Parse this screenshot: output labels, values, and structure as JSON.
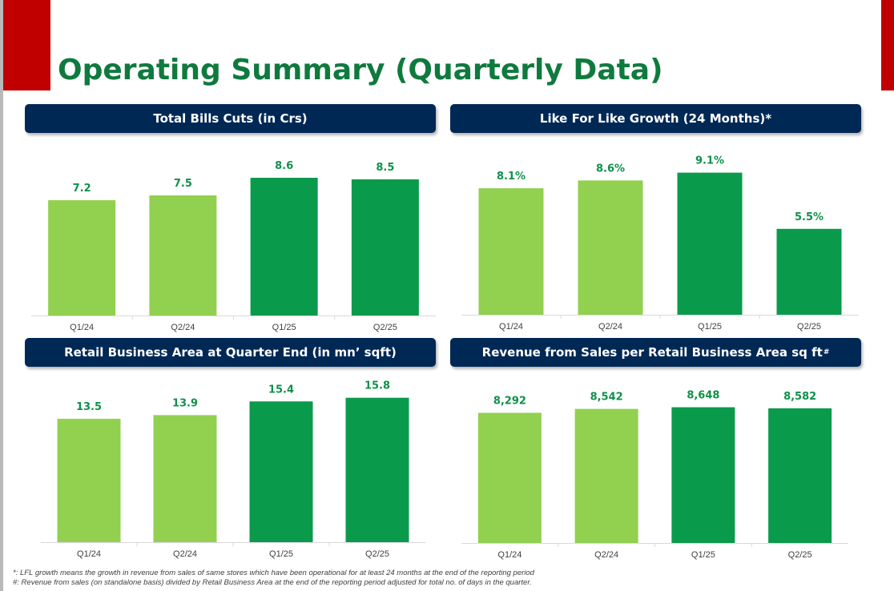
{
  "page": {
    "title": "Operating Summary (Quarterly Data)"
  },
  "colors": {
    "light_green": "#92d050",
    "dark_green": "#0a9a4c",
    "label_green": "#10904a",
    "header_navy": "#002855",
    "accent_red": "#c00000"
  },
  "chart_data": [
    {
      "type": "bar",
      "title": "Total Bills Cuts (in Crs)",
      "categories": [
        "Q1/24",
        "Q2/24",
        "Q1/25",
        "Q2/25"
      ],
      "values": [
        7.2,
        7.5,
        8.6,
        8.5
      ],
      "data_labels": [
        "7.2",
        "7.5",
        "8.6",
        "8.5"
      ],
      "bar_colors": [
        "#92d050",
        "#92d050",
        "#0a9a4c",
        "#0a9a4c"
      ],
      "ylim": [
        0,
        9.6
      ]
    },
    {
      "type": "bar",
      "title": "Like For Like Growth (24 Months)*",
      "categories": [
        "Q1/24",
        "Q2/24",
        "Q1/25",
        "Q2/25"
      ],
      "values": [
        8.1,
        8.6,
        9.1,
        5.5
      ],
      "data_labels": [
        "8.1%",
        "8.6%",
        "9.1%",
        "5.5%"
      ],
      "bar_colors": [
        "#92d050",
        "#92d050",
        "#0a9a4c",
        "#0a9a4c"
      ],
      "ylim": [
        0,
        9.9
      ]
    },
    {
      "type": "bar",
      "title": "Retail Business Area at Quarter End (in mn’ sqft)",
      "categories": [
        "Q1/24",
        "Q2/24",
        "Q1/25",
        "Q2/25"
      ],
      "values": [
        13.5,
        13.9,
        15.4,
        15.8
      ],
      "data_labels": [
        "13.5",
        "13.9",
        "15.4",
        "15.8"
      ],
      "bar_colors": [
        "#92d050",
        "#92d050",
        "#0a9a4c",
        "#0a9a4c"
      ],
      "ylim": [
        0,
        17
      ]
    },
    {
      "type": "bar",
      "title": "Revenue from Sales per Retail Business Area sq ft",
      "title_superscript": "#",
      "categories": [
        "Q1/24",
        "Q2/24",
        "Q1/25",
        "Q2/25"
      ],
      "values": [
        8292,
        8542,
        8648,
        8582
      ],
      "data_labels": [
        "8,292",
        "8,542",
        "8,648",
        "8,582"
      ],
      "bar_colors": [
        "#92d050",
        "#92d050",
        "#0a9a4c",
        "#0a9a4c"
      ],
      "ylim": [
        0,
        9900
      ]
    }
  ],
  "footnotes": [
    "*: LFL growth means the growth in revenue from sales of same stores which have been operational for at least 24 months at the end of the reporting period",
    "#: Revenue from sales (on standalone basis) divided by Retail Business Area at the end of the reporting period adjusted for total no. of days in the quarter."
  ]
}
